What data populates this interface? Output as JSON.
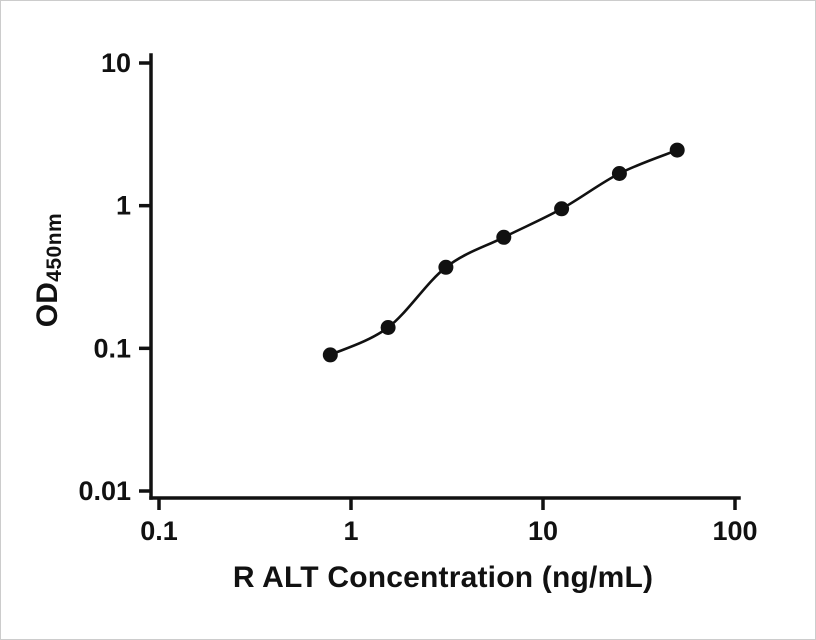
{
  "figure": {
    "background": "#ffffff",
    "border_color": "#cccccc"
  },
  "chart_data": {
    "type": "scatter",
    "title": "",
    "x": [
      0.78,
      1.56,
      3.12,
      6.25,
      12.5,
      25,
      50
    ],
    "y": [
      0.09,
      0.14,
      0.37,
      0.6,
      0.95,
      1.68,
      2.45
    ],
    "xlabel": "R ALT Concentration (ng/mL)",
    "ylabel_main": "OD",
    "ylabel_sub": "450nm",
    "xscale": "log",
    "yscale": "log",
    "xlim": [
      0.1,
      100
    ],
    "ylim": [
      0.01,
      10
    ],
    "xticks": {
      "values": [
        0.1,
        1,
        10,
        100
      ],
      "labels": [
        "0.1",
        "1",
        "10",
        "100"
      ]
    },
    "yticks": {
      "values": [
        0.01,
        0.1,
        1,
        10
      ],
      "labels": [
        "0.01",
        "0.1",
        "1",
        "10"
      ]
    },
    "fit_line": true,
    "grid": false,
    "legend": "none",
    "marker_color": "#111111",
    "line_color": "#111111",
    "axis_color": "#111111"
  }
}
